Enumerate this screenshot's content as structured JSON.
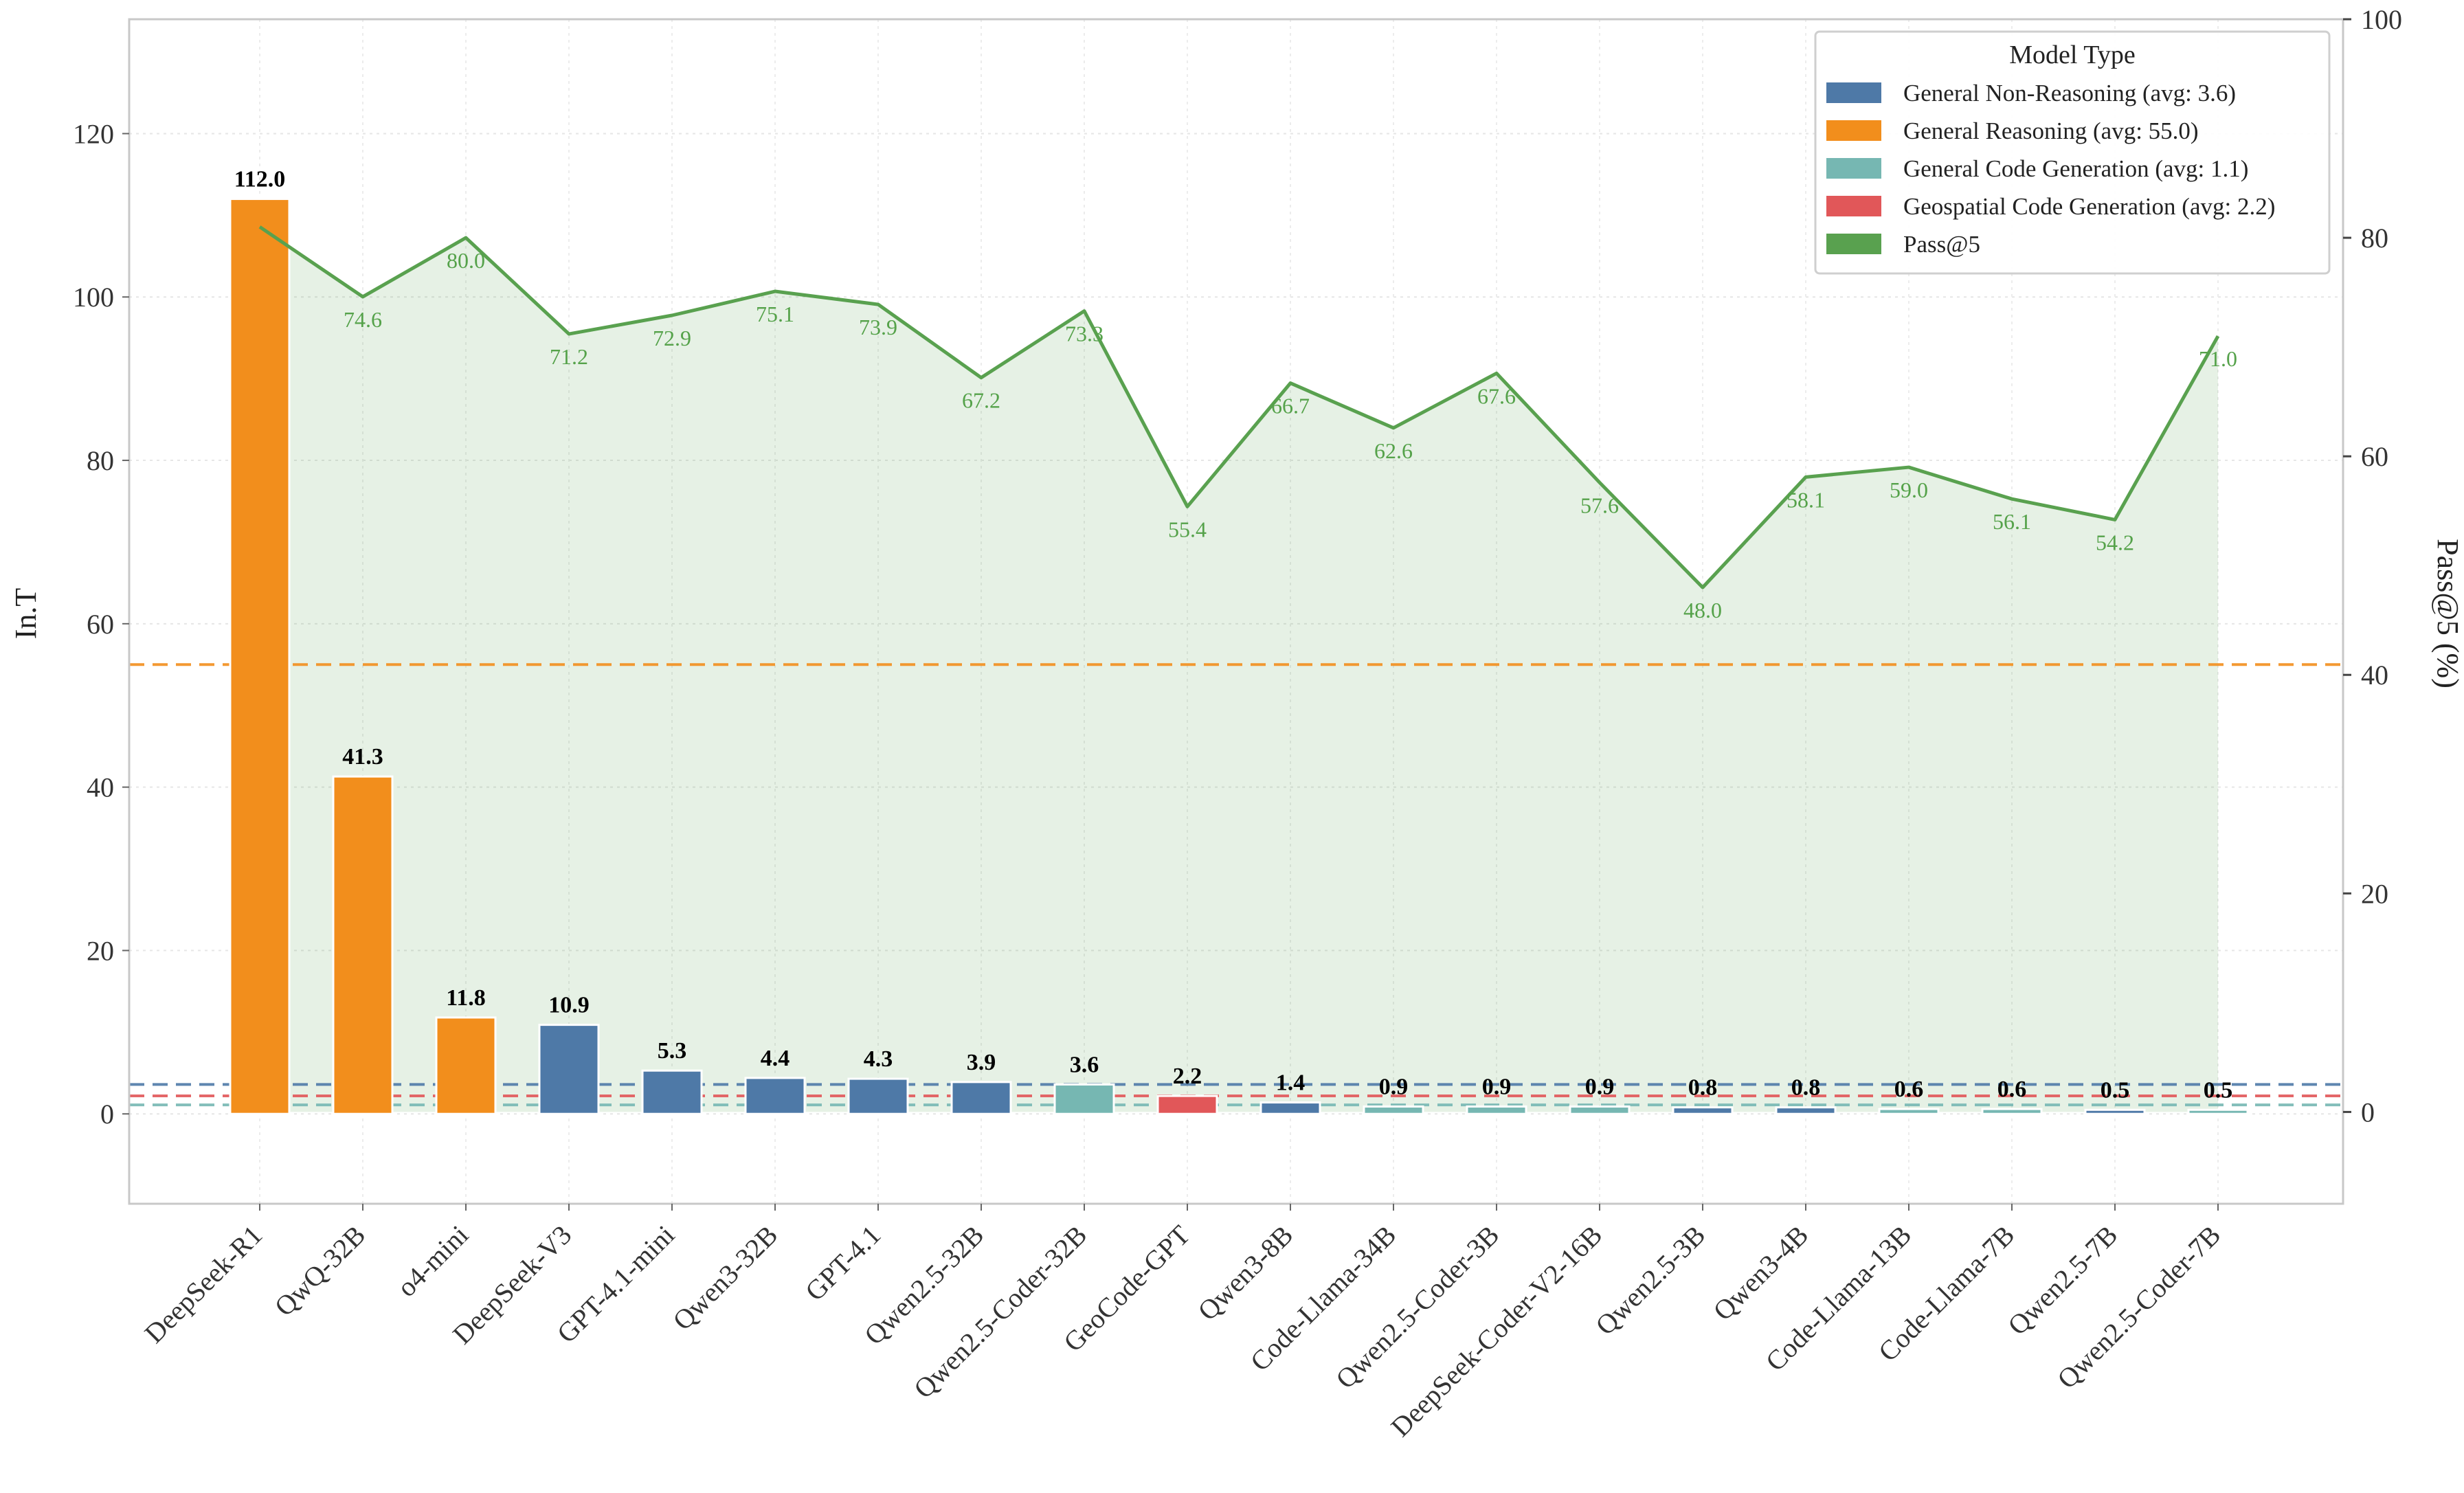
{
  "chart_data": {
    "type": "bar",
    "categories": [
      "DeepSeek-R1",
      "QwQ-32B",
      "o4-mini",
      "DeepSeek-V3",
      "GPT-4.1-mini",
      "Qwen3-32B",
      "GPT-4.1",
      "Qwen2.5-32B",
      "Qwen2.5-Coder-32B",
      "GeoCode-GPT",
      "Qwen3-8B",
      "Code-Llama-34B",
      "Qwen2.5-Coder-3B",
      "DeepSeek-Coder-V2-16B",
      "Qwen2.5-3B",
      "Qwen3-4B",
      "Code-Llama-13B",
      "Code-Llama-7B",
      "Qwen2.5-7B",
      "Qwen2.5-Coder-7B"
    ],
    "values": [
      112.0,
      41.3,
      11.8,
      10.9,
      5.3,
      4.4,
      4.3,
      3.9,
      3.6,
      2.2,
      1.4,
      0.9,
      0.9,
      0.9,
      0.8,
      0.8,
      0.6,
      0.6,
      0.5,
      0.5
    ],
    "bar_labels": [
      "112.0",
      "41.3",
      "11.8",
      "10.9",
      "5.3",
      "4.4",
      "4.3",
      "3.9",
      "3.6",
      "2.2",
      "1.4",
      "0.9",
      "0.9",
      "0.9",
      "0.8",
      "0.8",
      "0.6",
      "0.6",
      "0.5",
      "0.5"
    ],
    "groups": [
      "reasoning",
      "reasoning",
      "reasoning",
      "non_reasoning",
      "non_reasoning",
      "non_reasoning",
      "non_reasoning",
      "non_reasoning",
      "code_gen",
      "geo",
      "non_reasoning",
      "code_gen",
      "code_gen",
      "code_gen",
      "non_reasoning",
      "non_reasoning",
      "code_gen",
      "code_gen",
      "non_reasoning",
      "code_gen"
    ],
    "group_colors": {
      "non_reasoning": "#4e79a7",
      "reasoning": "#f28e1c",
      "code_gen": "#76b7b2",
      "geo": "#e15759",
      "pass": "#59a14f"
    },
    "pass_at_5": [
      81.0,
      74.6,
      80.0,
      71.2,
      72.9,
      75.1,
      73.9,
      67.2,
      73.3,
      55.4,
      66.7,
      62.6,
      67.6,
      57.6,
      48.0,
      58.1,
      59.0,
      56.1,
      54.2,
      71.0
    ],
    "pass_at_5_labels": [
      "",
      "74.6",
      "80.0",
      "71.2",
      "72.9",
      "75.1",
      "73.9",
      "67.2",
      "73.3",
      "55.4",
      "66.7",
      "62.6",
      "67.6",
      "57.6",
      "48.0",
      "58.1",
      "59.0",
      "56.1",
      "54.2",
      "71.0"
    ],
    "avg_lines": [
      {
        "group": "reasoning",
        "value": 55.0
      },
      {
        "group": "non_reasoning",
        "value": 3.6
      },
      {
        "group": "geo",
        "value": 2.2
      },
      {
        "group": "code_gen",
        "value": 1.1
      }
    ],
    "ylabel": "In.T",
    "y2label": "Pass@5 (%)",
    "ylim": [
      -11,
      134
    ],
    "yticks": [
      0,
      20,
      40,
      60,
      80,
      100,
      120
    ],
    "y2lim": [
      -8.4,
      100
    ],
    "y2ticks": [
      0,
      20,
      40,
      60,
      80,
      100
    ],
    "grid": true,
    "legend": {
      "title": "Model Type",
      "placement": "top-right",
      "entries": [
        {
          "label": "General Non-Reasoning (avg: 3.6)",
          "group": "non_reasoning"
        },
        {
          "label": "General Reasoning (avg: 55.0)",
          "group": "reasoning"
        },
        {
          "label": "General Code Generation (avg: 1.1)",
          "group": "code_gen"
        },
        {
          "label": "Geospatial Code Generation (avg: 2.2)",
          "group": "geo"
        },
        {
          "label": "Pass@5",
          "group": "pass"
        }
      ]
    }
  }
}
